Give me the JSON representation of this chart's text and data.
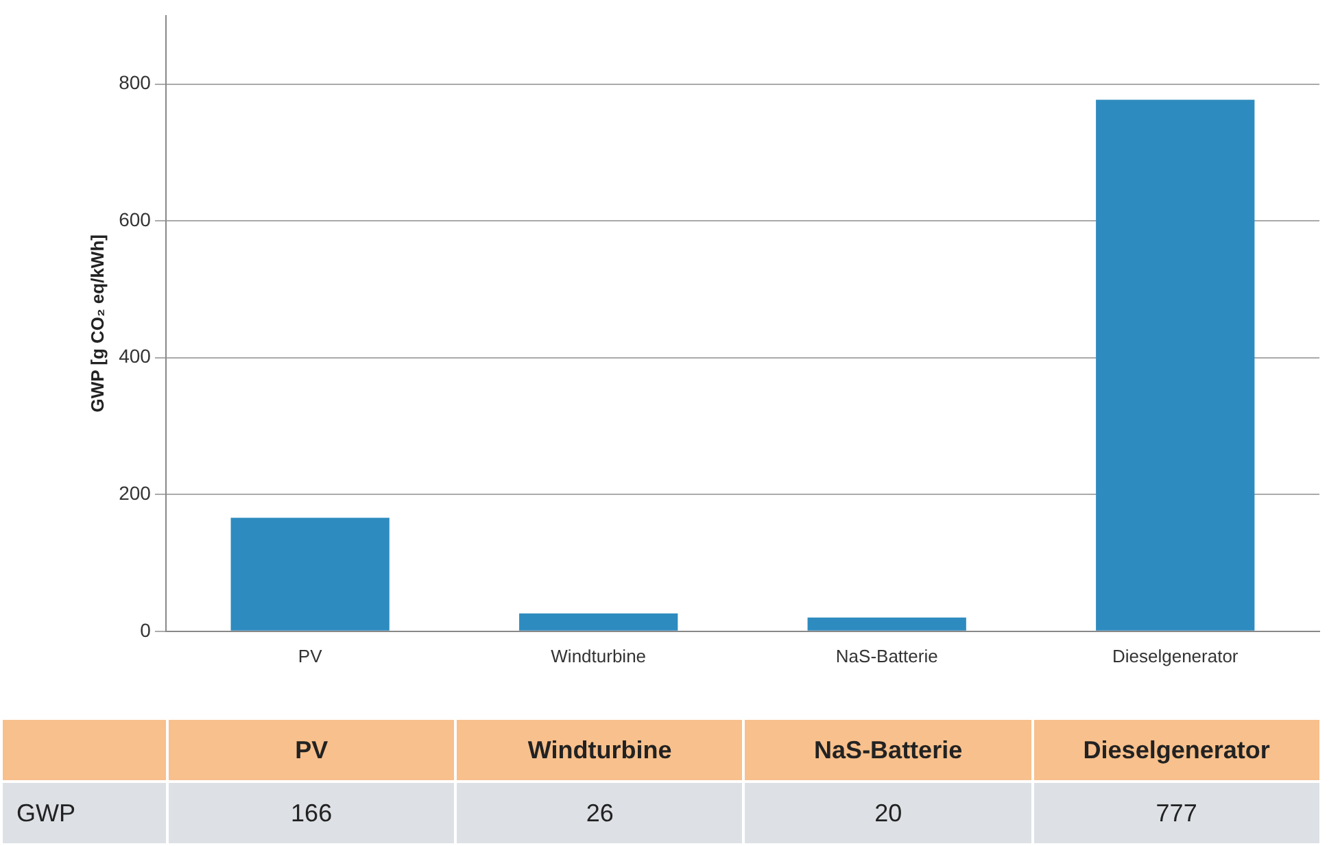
{
  "chart_data": {
    "type": "bar",
    "ylabel": "GWP [g CO₂ eq/kWh]",
    "categories": [
      "PV",
      "Windturbine",
      "NaS-Batterie",
      "Dieselgenerator"
    ],
    "series": [
      {
        "name": "GWP",
        "color": "#2e8bbf",
        "values": [
          166,
          26,
          20,
          777
        ]
      }
    ],
    "ylim": [
      0,
      900
    ],
    "yticks": [
      0,
      200,
      400,
      600,
      800
    ],
    "grid": "y",
    "legend": false,
    "data_labels": true
  }
}
